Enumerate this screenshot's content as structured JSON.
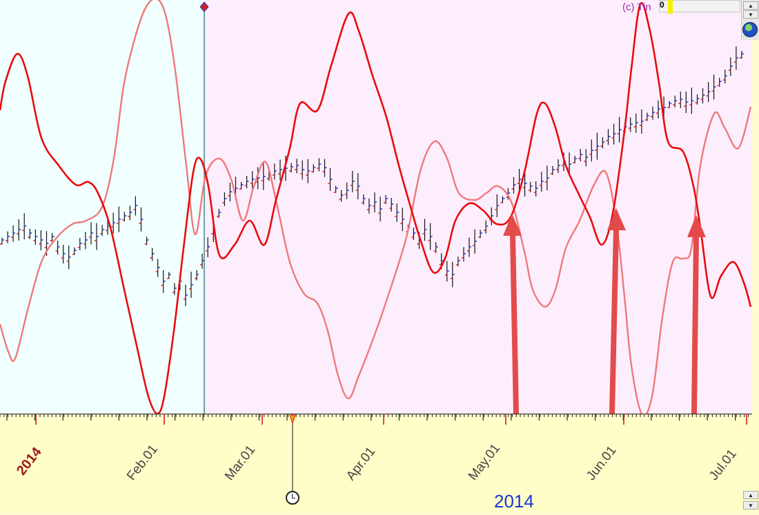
{
  "header": {
    "copyright": "(c) Tin",
    "value": "0"
  },
  "axis": {
    "year_label": "2014",
    "bottom_year": "2014",
    "months": [
      {
        "label": "Feb.01",
        "x": 238
      },
      {
        "label": "Mar.01",
        "x": 380
      },
      {
        "label": "Apr.01",
        "x": 556
      },
      {
        "label": "May.01",
        "x": 733
      },
      {
        "label": "Jun.01",
        "x": 904
      },
      {
        "label": "Jul.01",
        "x": 1082
      }
    ]
  },
  "colors": {
    "cyan_bg": "#f2ffff",
    "pink_bg": "#fdeefd",
    "cycle_dark": "#ea0a0a",
    "cycle_light": "#f0787a",
    "arrow": "#e34b4b",
    "divider": "#3a8a88",
    "bars": "#111111"
  },
  "icons": {
    "globe": "globe-icon",
    "clock": "clock-icon",
    "scroll_up": "triangle-up-icon",
    "scroll_down": "triangle-down-icon",
    "marker": "diamond-marker-icon"
  }
}
